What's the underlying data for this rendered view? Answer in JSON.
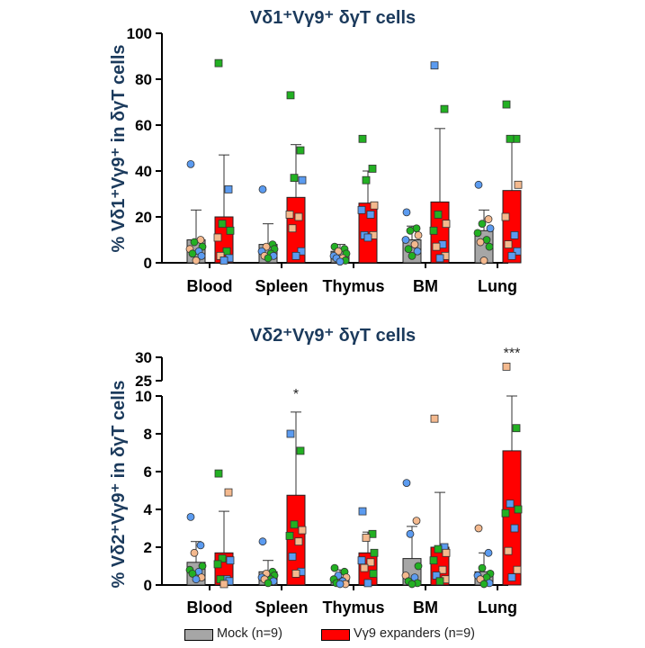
{
  "colors": {
    "mock": "#a6a6a6",
    "expander": "#ff0000",
    "title": "#1b3a5c",
    "dot_blue": "#5b9bf0",
    "dot_green": "#22b022",
    "dot_tan": "#f4b98e"
  },
  "legend": {
    "mock_label": "Mock (n=9)",
    "expander_label": "Vγ9 expanders (n=9)"
  },
  "chart_data": [
    {
      "type": "bar",
      "title": "Vδ1⁺Vγ9⁺ δγT cells",
      "ylabel": "% Vδ1⁺Vγ9⁺ in δγT cells",
      "ylim": [
        0,
        100
      ],
      "yticks": [
        "0",
        "20",
        "40",
        "60",
        "80",
        "100"
      ],
      "categories": [
        "Blood",
        "Spleen",
        "Thymus",
        "BM",
        "Lung"
      ],
      "series": [
        {
          "name": "Mock (n=9)",
          "marker": "circle",
          "means": [
            10,
            8,
            5,
            10,
            14
          ],
          "sd": [
            13,
            9,
            3,
            6,
            9
          ],
          "points": [
            [
              {
                "v": 43,
                "c": "b"
              },
              {
                "v": 10,
                "c": "t"
              },
              {
                "v": 9,
                "c": "g"
              },
              {
                "v": 7,
                "c": "g"
              },
              {
                "v": 6,
                "c": "t"
              },
              {
                "v": 5,
                "c": "b"
              },
              {
                "v": 4,
                "c": "g"
              },
              {
                "v": 3,
                "c": "b"
              },
              {
                "v": 1,
                "c": "t"
              }
            ],
            [
              {
                "v": 32,
                "c": "b"
              },
              {
                "v": 8,
                "c": "g"
              },
              {
                "v": 7,
                "c": "t"
              },
              {
                "v": 6,
                "c": "g"
              },
              {
                "v": 5,
                "c": "b"
              },
              {
                "v": 4,
                "c": "g"
              },
              {
                "v": 3,
                "c": "t"
              },
              {
                "v": 3,
                "c": "b"
              },
              {
                "v": 2,
                "c": "g"
              }
            ],
            [
              {
                "v": 7,
                "c": "g"
              },
              {
                "v": 6,
                "c": "g"
              },
              {
                "v": 5,
                "c": "t"
              },
              {
                "v": 4,
                "c": "g"
              },
              {
                "v": 3,
                "c": "b"
              },
              {
                "v": 2,
                "c": "t"
              },
              {
                "v": 2,
                "c": "b"
              },
              {
                "v": 1,
                "c": "g"
              },
              {
                "v": 0.5,
                "c": "b"
              }
            ],
            [
              {
                "v": 22,
                "c": "b"
              },
              {
                "v": 15,
                "c": "g"
              },
              {
                "v": 14,
                "c": "g"
              },
              {
                "v": 12,
                "c": "t"
              },
              {
                "v": 10,
                "c": "b"
              },
              {
                "v": 8,
                "c": "t"
              },
              {
                "v": 6,
                "c": "g"
              },
              {
                "v": 5,
                "c": "b"
              },
              {
                "v": 3,
                "c": "g"
              }
            ],
            [
              {
                "v": 34,
                "c": "b"
              },
              {
                "v": 19,
                "c": "t"
              },
              {
                "v": 17,
                "c": "g"
              },
              {
                "v": 15,
                "c": "b"
              },
              {
                "v": 13,
                "c": "g"
              },
              {
                "v": 10,
                "c": "g"
              },
              {
                "v": 9,
                "c": "t"
              },
              {
                "v": 7,
                "c": "g"
              },
              {
                "v": 1,
                "c": "t"
              }
            ]
          ]
        },
        {
          "name": "Vγ9 expanders (n=9)",
          "marker": "square",
          "means": [
            20,
            28.5,
            26,
            26.5,
            31.5
          ],
          "sd": [
            27,
            23,
            14,
            32,
            24
          ],
          "points": [
            [
              {
                "v": 87,
                "c": "g"
              },
              {
                "v": 32,
                "c": "b"
              },
              {
                "v": 17,
                "c": "g"
              },
              {
                "v": 14,
                "c": "g"
              },
              {
                "v": 11,
                "c": "t"
              },
              {
                "v": 5,
                "c": "g"
              },
              {
                "v": 3,
                "c": "t"
              },
              {
                "v": 2,
                "c": "b"
              },
              {
                "v": 1,
                "c": "b"
              }
            ],
            [
              {
                "v": 73,
                "c": "g"
              },
              {
                "v": 49,
                "c": "g"
              },
              {
                "v": 37,
                "c": "g"
              },
              {
                "v": 36,
                "c": "b"
              },
              {
                "v": 21,
                "c": "t"
              },
              {
                "v": 20,
                "c": "t"
              },
              {
                "v": 15,
                "c": "t"
              },
              {
                "v": 5,
                "c": "b"
              },
              {
                "v": 3,
                "c": "b"
              }
            ],
            [
              {
                "v": 54,
                "c": "g"
              },
              {
                "v": 41,
                "c": "g"
              },
              {
                "v": 36,
                "c": "g"
              },
              {
                "v": 25,
                "c": "t"
              },
              {
                "v": 23,
                "c": "b"
              },
              {
                "v": 21,
                "c": "b"
              },
              {
                "v": 12,
                "c": "b"
              },
              {
                "v": 12,
                "c": "t"
              },
              {
                "v": 11,
                "c": "b"
              }
            ],
            [
              {
                "v": 86,
                "c": "b"
              },
              {
                "v": 67,
                "c": "g"
              },
              {
                "v": 21,
                "c": "g"
              },
              {
                "v": 17,
                "c": "t"
              },
              {
                "v": 14,
                "c": "g"
              },
              {
                "v": 8,
                "c": "b"
              },
              {
                "v": 7,
                "c": "t"
              },
              {
                "v": 3,
                "c": "t"
              },
              {
                "v": 2,
                "c": "b"
              }
            ],
            [
              {
                "v": 69,
                "c": "g"
              },
              {
                "v": 54,
                "c": "g"
              },
              {
                "v": 54,
                "c": "g"
              },
              {
                "v": 34,
                "c": "t"
              },
              {
                "v": 20,
                "c": "t"
              },
              {
                "v": 12,
                "c": "b"
              },
              {
                "v": 8,
                "c": "t"
              },
              {
                "v": 5,
                "c": "b"
              },
              {
                "v": 3,
                "c": "b"
              }
            ]
          ]
        }
      ]
    },
    {
      "type": "bar",
      "title": "Vδ2⁺Vγ9⁺ δγT cells",
      "ylabel": "% Vδ2⁺Vγ9⁺ in δγT cells",
      "ylim": [
        0,
        10
      ],
      "ylim_upper_segment": [
        25,
        30
      ],
      "axis_break": true,
      "yticks": [
        "0",
        "2",
        "4",
        "6",
        "8",
        "10"
      ],
      "yticks_upper": [
        "25",
        "30"
      ],
      "categories": [
        "Blood",
        "Spleen",
        "Thymus",
        "BM",
        "Lung"
      ],
      "significance": [
        "",
        "*",
        "",
        "",
        "***"
      ],
      "series": [
        {
          "name": "Mock (n=9)",
          "marker": "circle",
          "means": [
            1.2,
            0.7,
            0.4,
            1.4,
            0.7
          ],
          "sd": [
            1.1,
            0.6,
            0.4,
            1.7,
            1.0
          ],
          "points": [
            [
              {
                "v": 3.6,
                "c": "b"
              },
              {
                "v": 2.1,
                "c": "b"
              },
              {
                "v": 1.7,
                "c": "t"
              },
              {
                "v": 1.0,
                "c": "g"
              },
              {
                "v": 0.8,
                "c": "g"
              },
              {
                "v": 0.7,
                "c": "b"
              },
              {
                "v": 0.6,
                "c": "g"
              },
              {
                "v": 0.4,
                "c": "t"
              },
              {
                "v": 0.3,
                "c": "b"
              }
            ],
            [
              {
                "v": 2.3,
                "c": "b"
              },
              {
                "v": 0.7,
                "c": "g"
              },
              {
                "v": 0.6,
                "c": "t"
              },
              {
                "v": 0.5,
                "c": "g"
              },
              {
                "v": 0.4,
                "c": "b"
              },
              {
                "v": 0.3,
                "c": "g"
              },
              {
                "v": 0.3,
                "c": "t"
              },
              {
                "v": 0.2,
                "c": "b"
              },
              {
                "v": 0.1,
                "c": "g"
              }
            ],
            [
              {
                "v": 0.9,
                "c": "g"
              },
              {
                "v": 0.7,
                "c": "g"
              },
              {
                "v": 0.5,
                "c": "b"
              },
              {
                "v": 0.4,
                "c": "t"
              },
              {
                "v": 0.3,
                "c": "g"
              },
              {
                "v": 0.2,
                "c": "b"
              },
              {
                "v": 0.1,
                "c": "g"
              },
              {
                "v": 0.05,
                "c": "t"
              },
              {
                "v": 0.05,
                "c": "b"
              }
            ],
            [
              {
                "v": 5.4,
                "c": "b"
              },
              {
                "v": 3.4,
                "c": "t"
              },
              {
                "v": 2.7,
                "c": "b"
              },
              {
                "v": 1.0,
                "c": "g"
              },
              {
                "v": 0.5,
                "c": "t"
              },
              {
                "v": 0.4,
                "c": "b"
              },
              {
                "v": 0.2,
                "c": "g"
              },
              {
                "v": 0.1,
                "c": "g"
              },
              {
                "v": 0.05,
                "c": "g"
              }
            ],
            [
              {
                "v": 3.0,
                "c": "t"
              },
              {
                "v": 1.7,
                "c": "b"
              },
              {
                "v": 0.9,
                "c": "g"
              },
              {
                "v": 0.6,
                "c": "g"
              },
              {
                "v": 0.5,
                "c": "b"
              },
              {
                "v": 0.4,
                "c": "g"
              },
              {
                "v": 0.3,
                "c": "t"
              },
              {
                "v": 0.1,
                "c": "b"
              },
              {
                "v": 0.05,
                "c": "g"
              }
            ]
          ]
        },
        {
          "name": "Vγ9 expanders (n=9)",
          "marker": "square",
          "means": [
            1.7,
            4.75,
            1.7,
            2.0,
            7.1
          ],
          "sd": [
            2.2,
            4.4,
            1.1,
            2.9,
            2.9
          ],
          "points": [
            [
              {
                "v": 5.9,
                "c": "g"
              },
              {
                "v": 4.9,
                "c": "t"
              },
              {
                "v": 1.4,
                "c": "g"
              },
              {
                "v": 1.3,
                "c": "b"
              },
              {
                "v": 1.1,
                "c": "g"
              },
              {
                "v": 0.3,
                "c": "b"
              },
              {
                "v": 0.3,
                "c": "g"
              },
              {
                "v": 0.2,
                "c": "b"
              },
              {
                "v": 0.05,
                "c": "t"
              }
            ],
            [
              {
                "v": 8.0,
                "c": "b"
              },
              {
                "v": 7.1,
                "c": "g"
              },
              {
                "v": 3.2,
                "c": "g"
              },
              {
                "v": 2.9,
                "c": "t"
              },
              {
                "v": 2.6,
                "c": "g"
              },
              {
                "v": 2.3,
                "c": "t"
              },
              {
                "v": 1.5,
                "c": "b"
              },
              {
                "v": 0.7,
                "c": "b"
              },
              {
                "v": 0.6,
                "c": "t"
              }
            ],
            [
              {
                "v": 3.9,
                "c": "b"
              },
              {
                "v": 2.7,
                "c": "g"
              },
              {
                "v": 2.5,
                "c": "t"
              },
              {
                "v": 1.7,
                "c": "g"
              },
              {
                "v": 1.3,
                "c": "b"
              },
              {
                "v": 1.2,
                "c": "t"
              },
              {
                "v": 0.9,
                "c": "t"
              },
              {
                "v": 0.6,
                "c": "g"
              },
              {
                "v": 0.1,
                "c": "b"
              }
            ],
            [
              {
                "v": 8.8,
                "c": "t"
              },
              {
                "v": 2.0,
                "c": "b"
              },
              {
                "v": 1.9,
                "c": "g"
              },
              {
                "v": 1.7,
                "c": "t"
              },
              {
                "v": 1.3,
                "c": "g"
              },
              {
                "v": 0.8,
                "c": "t"
              },
              {
                "v": 0.5,
                "c": "b"
              },
              {
                "v": 0.3,
                "c": "t"
              },
              {
                "v": 0.2,
                "c": "g"
              }
            ],
            [
              {
                "v": 28,
                "c": "t"
              },
              {
                "v": 8.3,
                "c": "g"
              },
              {
                "v": 4.3,
                "c": "b"
              },
              {
                "v": 4.0,
                "c": "g"
              },
              {
                "v": 3.8,
                "c": "g"
              },
              {
                "v": 3.0,
                "c": "b"
              },
              {
                "v": 1.8,
                "c": "t"
              },
              {
                "v": 0.8,
                "c": "t"
              },
              {
                "v": 0.4,
                "c": "b"
              }
            ]
          ]
        }
      ]
    }
  ]
}
